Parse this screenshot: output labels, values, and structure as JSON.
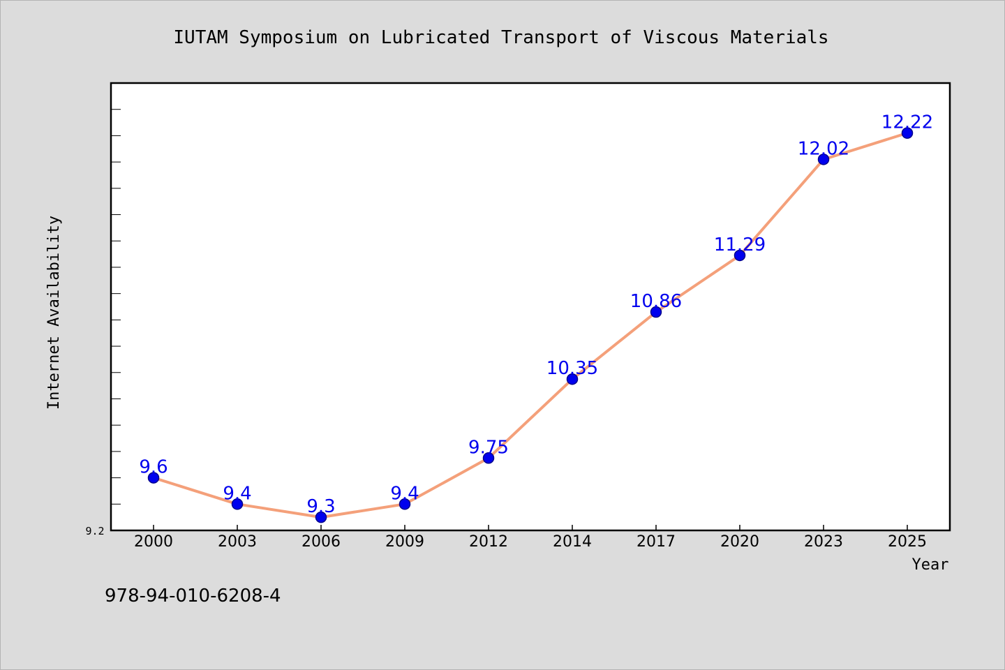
{
  "chart_data": {
    "type": "line",
    "title": "IUTAM Symposium on Lubricated Transport of Viscous Materials",
    "xlabel": "Year",
    "ylabel": "Internet Availability",
    "categories": [
      "2000",
      "2003",
      "2006",
      "2009",
      "2012",
      "2014",
      "2017",
      "2020",
      "2023",
      "2025"
    ],
    "series": [
      {
        "values": [
          9.6,
          9.4,
          9.3,
          9.4,
          9.75,
          10.35,
          10.86,
          11.29,
          12.02,
          12.22
        ]
      }
    ],
    "data_labels": [
      "9.6",
      "9.4",
      "9.3",
      "9.4",
      "9.75",
      "10.35",
      "10.86",
      "11.29",
      "12.02",
      "12.22"
    ],
    "yticks": [
      "9.2"
    ],
    "ylim": [
      9.2,
      12.6
    ],
    "grid": false,
    "colors": {
      "line": "#f4a07a",
      "marker": "#0000ee",
      "marker_edge": "#00008b",
      "data_label": "#0000ee",
      "plot_background": "#ffffff",
      "figure_background": "#dcdcdc"
    }
  },
  "footer": {
    "isbn": "978-94-010-6208-4"
  }
}
